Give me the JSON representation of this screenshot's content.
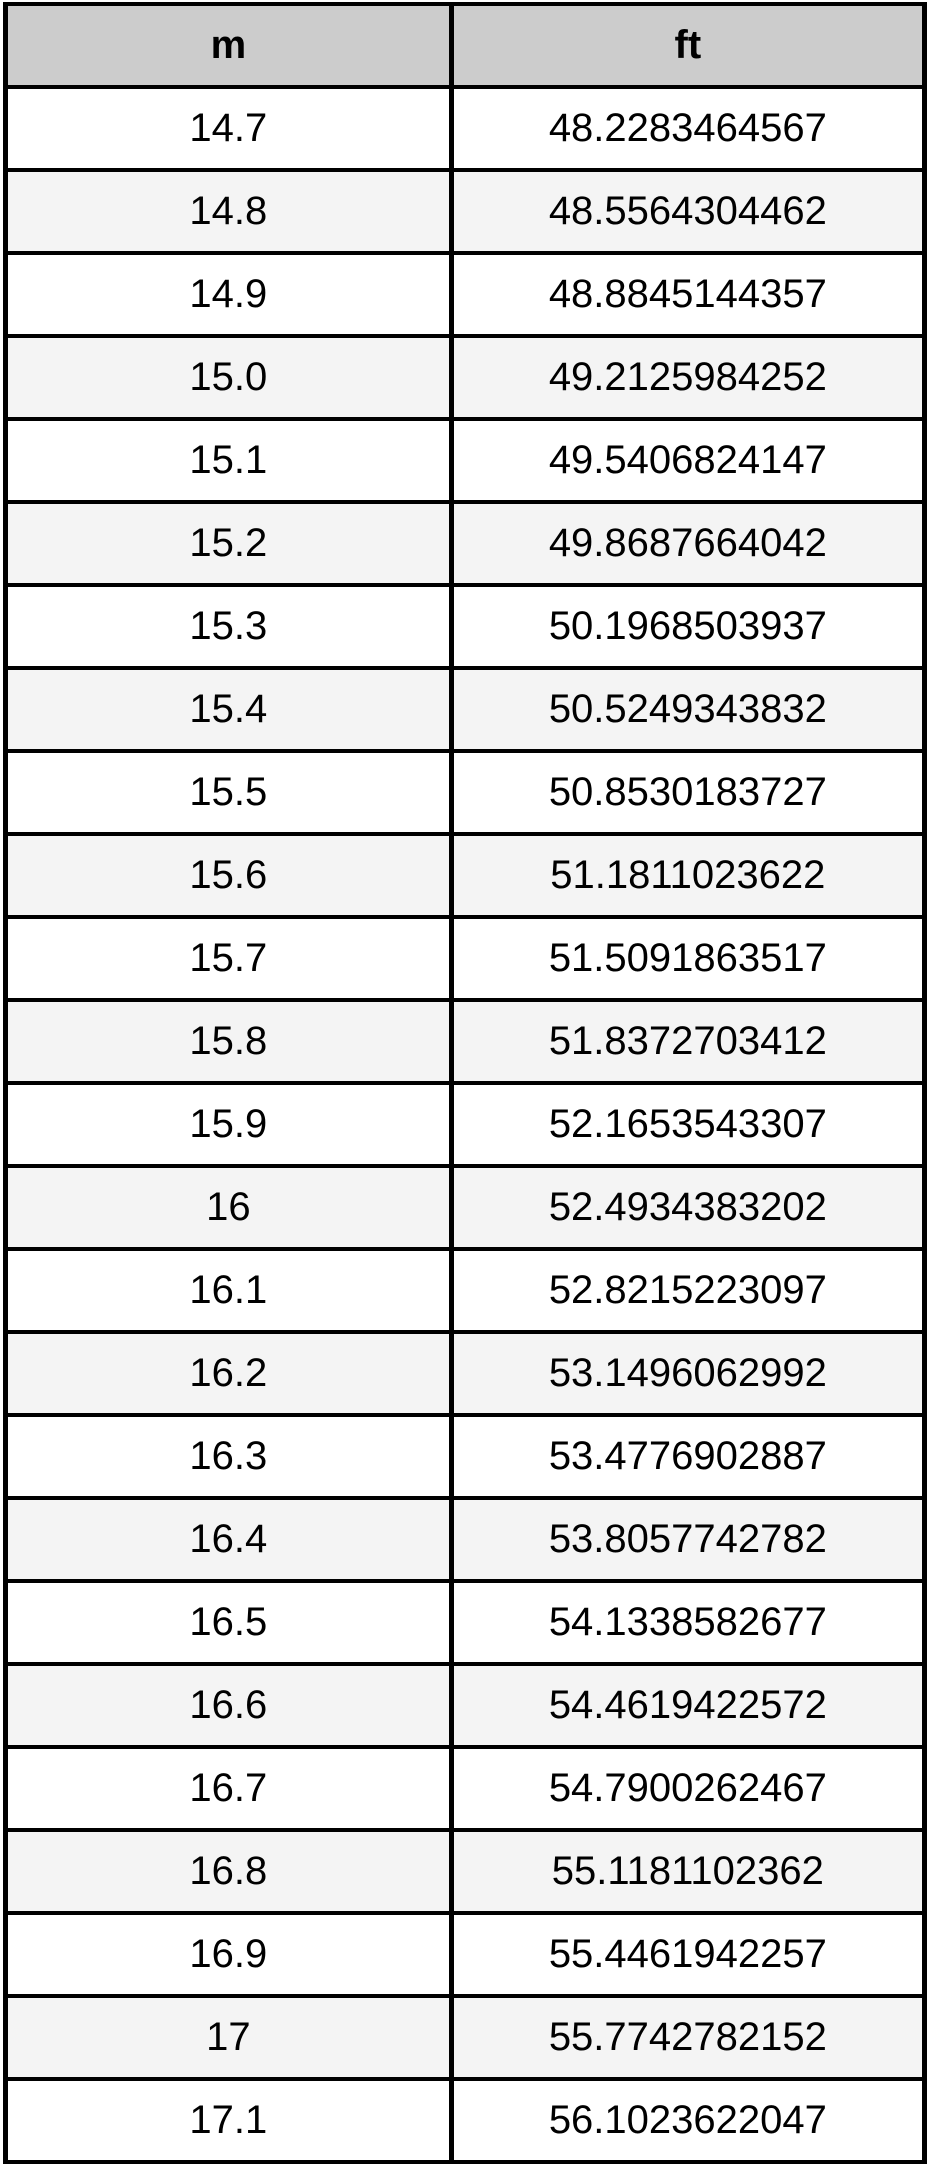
{
  "colors": {
    "header_bg": "#cccccc",
    "row_bg": "#ffffff",
    "row_alt_bg": "#f4f4f4",
    "border": "#000000",
    "text": "#000000"
  },
  "table": {
    "headers": [
      {
        "label": "m"
      },
      {
        "label": "ft"
      }
    ],
    "rows": [
      [
        "14.7",
        "48.2283464567"
      ],
      [
        "14.8",
        "48.5564304462"
      ],
      [
        "14.9",
        "48.8845144357"
      ],
      [
        "15.0",
        "49.2125984252"
      ],
      [
        "15.1",
        "49.5406824147"
      ],
      [
        "15.2",
        "49.8687664042"
      ],
      [
        "15.3",
        "50.1968503937"
      ],
      [
        "15.4",
        "50.5249343832"
      ],
      [
        "15.5",
        "50.8530183727"
      ],
      [
        "15.6",
        "51.1811023622"
      ],
      [
        "15.7",
        "51.5091863517"
      ],
      [
        "15.8",
        "51.8372703412"
      ],
      [
        "15.9",
        "52.1653543307"
      ],
      [
        "16",
        "52.4934383202"
      ],
      [
        "16.1",
        "52.8215223097"
      ],
      [
        "16.2",
        "53.1496062992"
      ],
      [
        "16.3",
        "53.4776902887"
      ],
      [
        "16.4",
        "53.8057742782"
      ],
      [
        "16.5",
        "54.1338582677"
      ],
      [
        "16.6",
        "54.4619422572"
      ],
      [
        "16.7",
        "54.7900262467"
      ],
      [
        "16.8",
        "55.1181102362"
      ],
      [
        "16.9",
        "55.4461942257"
      ],
      [
        "17",
        "55.7742782152"
      ],
      [
        "17.1",
        "56.1023622047"
      ]
    ]
  },
  "chart_data": {
    "type": "table",
    "title": "",
    "columns": [
      "m",
      "ft"
    ],
    "rows": [
      [
        14.7,
        48.2283464567
      ],
      [
        14.8,
        48.5564304462
      ],
      [
        14.9,
        48.8845144357
      ],
      [
        15.0,
        49.2125984252
      ],
      [
        15.1,
        49.5406824147
      ],
      [
        15.2,
        49.8687664042
      ],
      [
        15.3,
        50.1968503937
      ],
      [
        15.4,
        50.5249343832
      ],
      [
        15.5,
        50.8530183727
      ],
      [
        15.6,
        51.1811023622
      ],
      [
        15.7,
        51.5091863517
      ],
      [
        15.8,
        51.8372703412
      ],
      [
        15.9,
        52.1653543307
      ],
      [
        16,
        52.4934383202
      ],
      [
        16.1,
        52.8215223097
      ],
      [
        16.2,
        53.1496062992
      ],
      [
        16.3,
        53.4776902887
      ],
      [
        16.4,
        53.8057742782
      ],
      [
        16.5,
        54.1338582677
      ],
      [
        16.6,
        54.4619422572
      ],
      [
        16.7,
        54.7900262467
      ],
      [
        16.8,
        55.1181102362
      ],
      [
        16.9,
        55.4461942257
      ],
      [
        17,
        55.7742782152
      ],
      [
        17.1,
        56.1023622047
      ]
    ],
    "layout": {
      "striped_rows": true,
      "stripe_start": "second_data_row",
      "header_background": "#cccccc",
      "grid": "solid black borders"
    }
  }
}
